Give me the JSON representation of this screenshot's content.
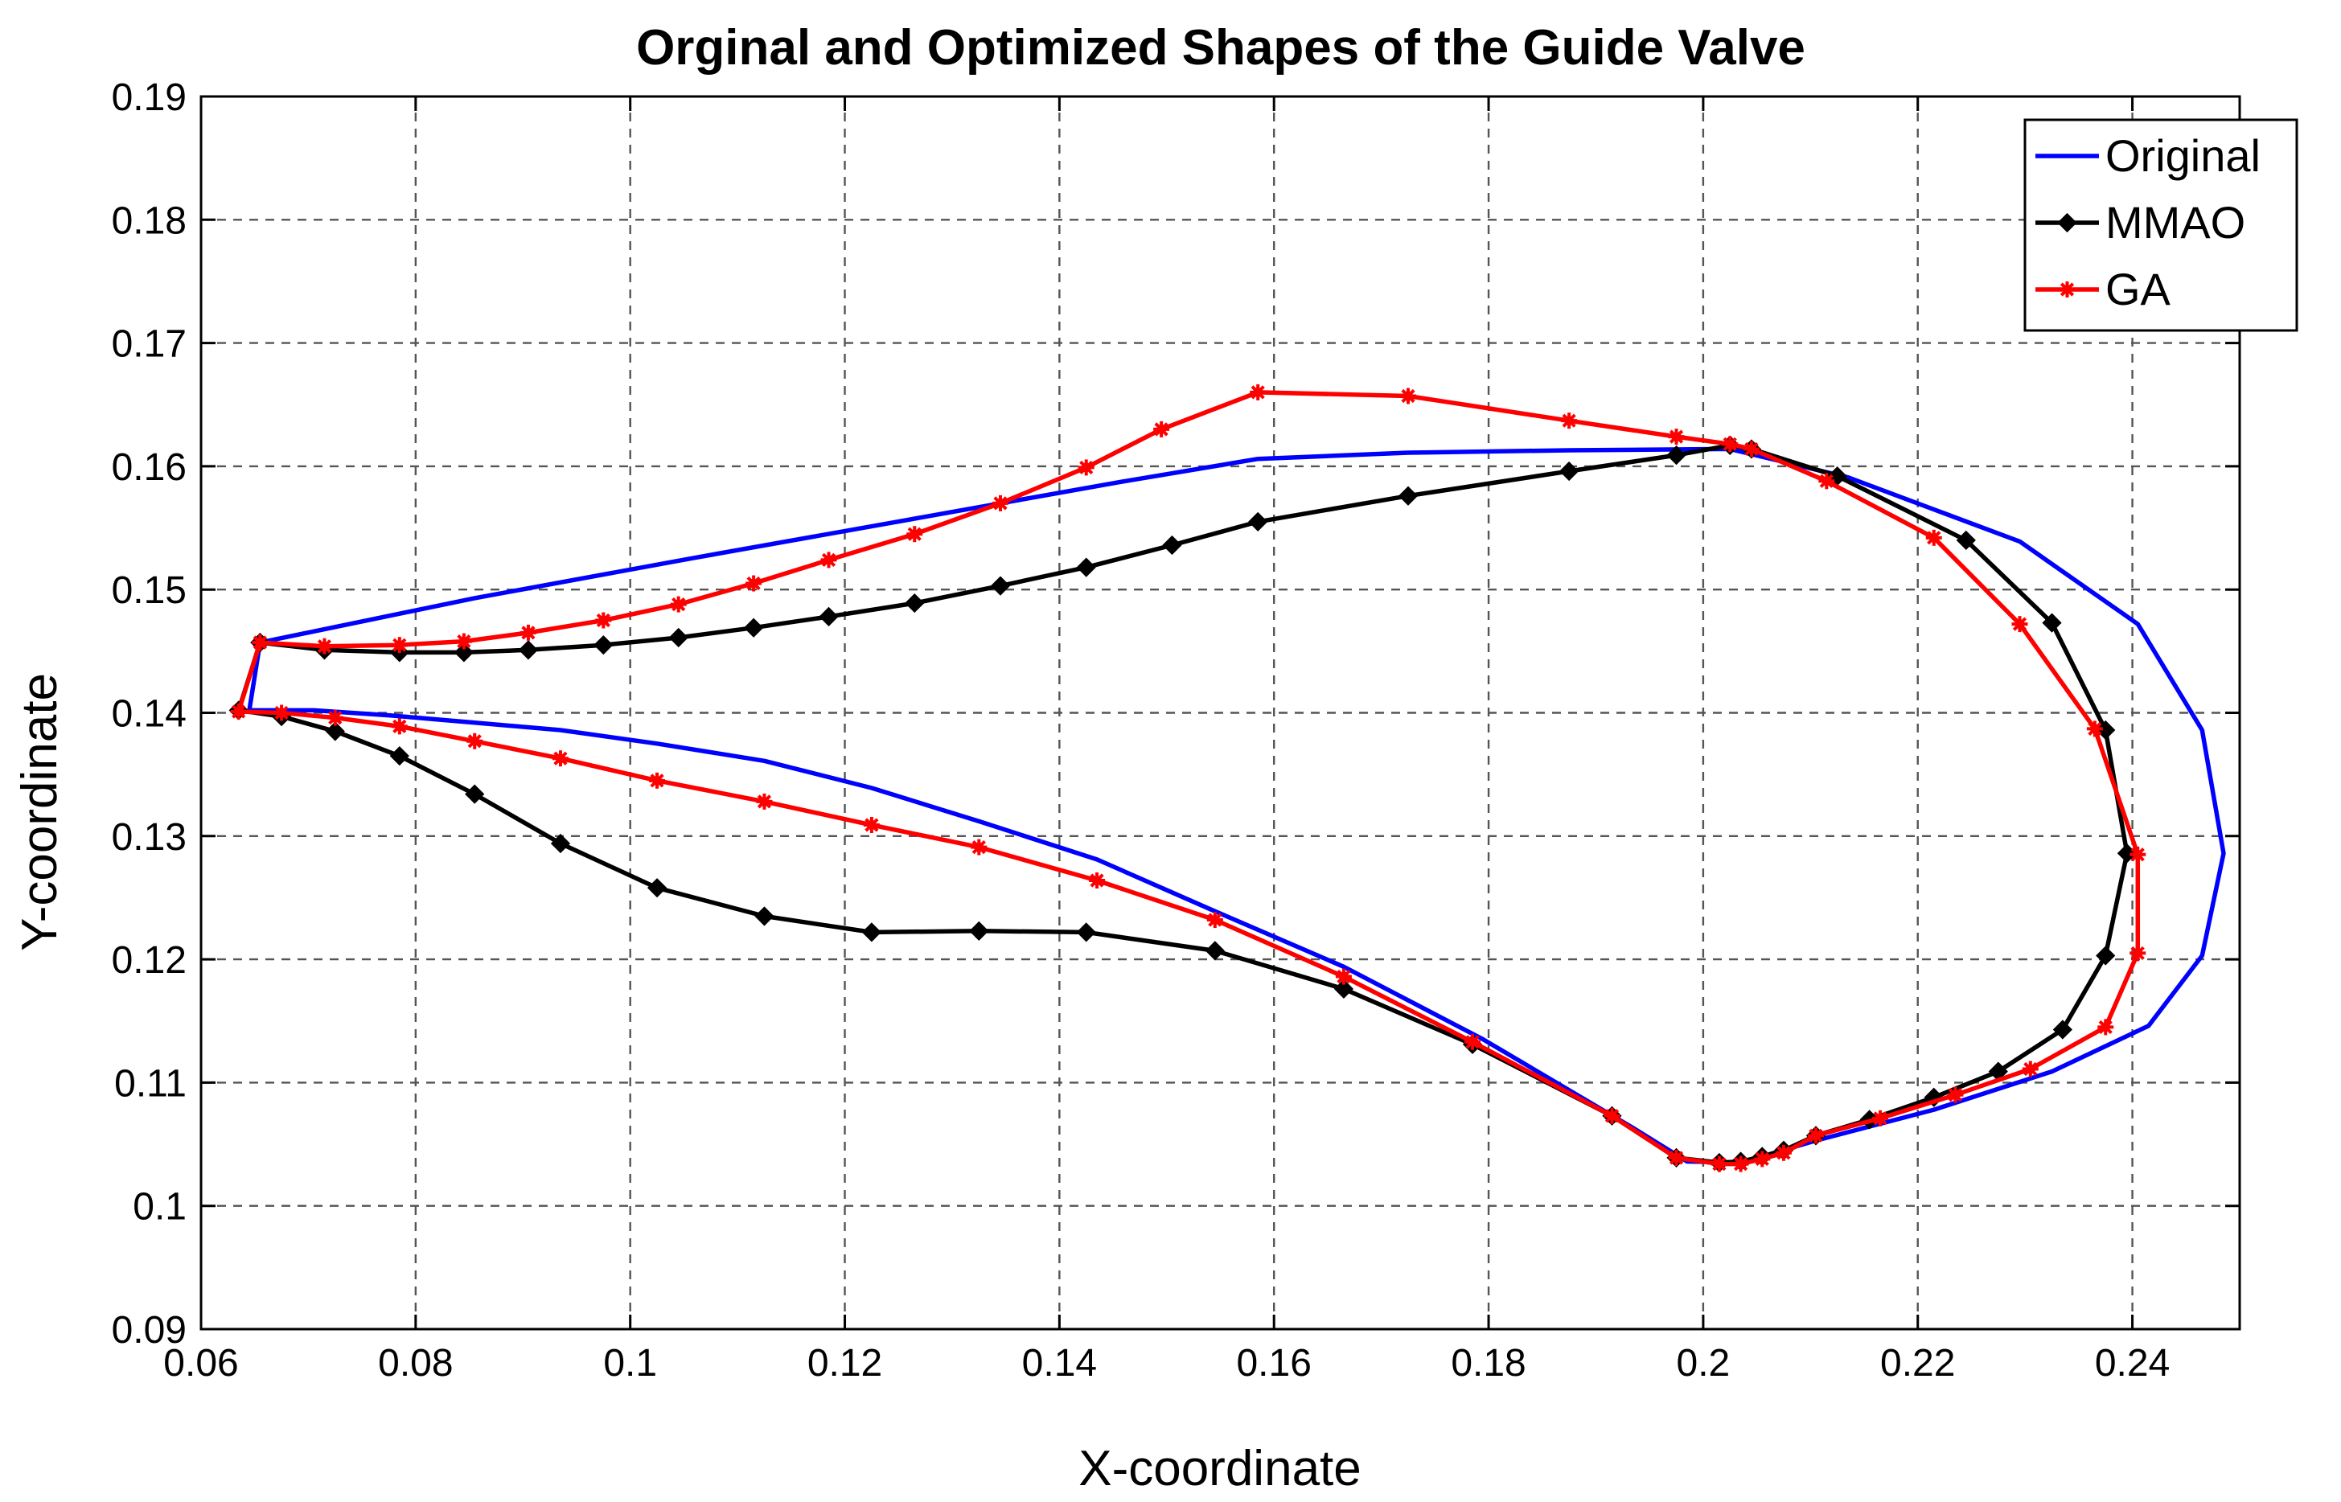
{
  "chart_data": {
    "type": "line",
    "title": "Orginal and Optimized Shapes of the Guide Valve",
    "xlabel": "X-coordinate",
    "ylabel": "Y-coordinate",
    "xlim": [
      0.06,
      0.25
    ],
    "ylim": [
      0.09,
      0.19
    ],
    "xticks": [
      0.06,
      0.08,
      0.1,
      0.12,
      0.14,
      0.16,
      0.18,
      0.2,
      0.22,
      0.24
    ],
    "xtick_labels": [
      "0.06",
      "0.08",
      "0.1",
      "0.12",
      "0.14",
      "0.16",
      "0.18",
      "0.2",
      "0.22",
      "0.24"
    ],
    "yticks": [
      0.09,
      0.1,
      0.11,
      0.12,
      0.13,
      0.14,
      0.15,
      0.16,
      0.17,
      0.18,
      0.19
    ],
    "ytick_labels": [
      "0.09",
      "0.1",
      "0.11",
      "0.12",
      "0.13",
      "0.14",
      "0.15",
      "0.16",
      "0.17",
      "0.18",
      "0.19"
    ],
    "grid": true,
    "legend_position": "top-right",
    "series": [
      {
        "name": "Original",
        "color": "#0000ff",
        "marker": "none",
        "x": [
          0.0655,
          0.0855,
          0.1055,
          0.1255,
          0.1455,
          0.1585,
          0.1725,
          0.1875,
          0.2025,
          0.2135,
          0.2295,
          0.2405,
          0.2465,
          0.2485,
          0.2465,
          0.2415,
          0.2325,
          0.2215,
          0.2105,
          0.2035,
          0.1985,
          0.1935,
          0.1795,
          0.1665,
          0.1545,
          0.1435,
          0.1325,
          0.1225,
          0.1125,
          0.1025,
          0.0935,
          0.0855,
          0.0775,
          0.0705,
          0.0665,
          0.0645,
          0.0655
        ],
        "y": [
          0.1457,
          0.1493,
          0.1525,
          0.1556,
          0.1587,
          0.1606,
          0.1611,
          0.1613,
          0.1614,
          0.1591,
          0.1539,
          0.1472,
          0.1386,
          0.1286,
          0.1203,
          0.1146,
          0.1109,
          0.1078,
          0.1053,
          0.1035,
          0.1036,
          0.1063,
          0.1135,
          0.1194,
          0.1239,
          0.1281,
          0.1312,
          0.1339,
          0.1361,
          0.1375,
          0.1386,
          0.1392,
          0.1398,
          0.1402,
          0.1402,
          0.1402,
          0.1457
        ]
      },
      {
        "name": "MMAO",
        "color": "#000000",
        "marker": "diamond",
        "x": [
          0.0655,
          0.0715,
          0.0785,
          0.0845,
          0.0905,
          0.0975,
          0.1045,
          0.1115,
          0.1185,
          0.1265,
          0.1345,
          0.1425,
          0.1505,
          0.1585,
          0.1725,
          0.1875,
          0.1975,
          0.2025,
          0.2045,
          0.2125,
          0.2245,
          0.2325,
          0.2375,
          0.2395,
          0.2375,
          0.2335,
          0.2275,
          0.2215,
          0.2155,
          0.2105,
          0.2075,
          0.2055,
          0.2035,
          0.2015,
          0.1975,
          0.1915,
          0.1785,
          0.1665,
          0.1545,
          0.1425,
          0.1325,
          0.1225,
          0.1125,
          0.1025,
          0.0935,
          0.0855,
          0.0785,
          0.0725,
          0.0675,
          0.0635,
          0.0655
        ],
        "y": [
          0.1457,
          0.1451,
          0.1449,
          0.1449,
          0.1451,
          0.1455,
          0.1461,
          0.1469,
          0.1478,
          0.1489,
          0.1503,
          0.1518,
          0.1536,
          0.1555,
          0.1576,
          0.1596,
          0.1609,
          0.1617,
          0.1614,
          0.1592,
          0.154,
          0.1473,
          0.1386,
          0.1286,
          0.1203,
          0.1143,
          0.1109,
          0.1088,
          0.107,
          0.1057,
          0.1045,
          0.104,
          0.1036,
          0.1035,
          0.1039,
          0.1073,
          0.1131,
          0.1176,
          0.1207,
          0.1222,
          0.1223,
          0.1222,
          0.1235,
          0.1258,
          0.1294,
          0.1334,
          0.1365,
          0.1385,
          0.1397,
          0.1402,
          0.1457
        ]
      },
      {
        "name": "GA",
        "color": "#ff0000",
        "marker": "asterisk",
        "x": [
          0.0655,
          0.0715,
          0.0785,
          0.0845,
          0.0905,
          0.0975,
          0.1045,
          0.1115,
          0.1185,
          0.1265,
          0.1345,
          0.1425,
          0.1495,
          0.1585,
          0.1725,
          0.1875,
          0.1975,
          0.2025,
          0.2045,
          0.2115,
          0.2215,
          0.2295,
          0.2365,
          0.2405,
          0.2405,
          0.2375,
          0.2305,
          0.2235,
          0.2165,
          0.2105,
          0.2075,
          0.2055,
          0.2035,
          0.2015,
          0.1975,
          0.1915,
          0.1785,
          0.1665,
          0.1545,
          0.1435,
          0.1325,
          0.1225,
          0.1125,
          0.1025,
          0.0935,
          0.0855,
          0.0785,
          0.0725,
          0.0675,
          0.0635,
          0.0655
        ],
        "y": [
          0.1457,
          0.1454,
          0.1455,
          0.1458,
          0.1465,
          0.1475,
          0.1488,
          0.1505,
          0.1524,
          0.1545,
          0.157,
          0.1599,
          0.163,
          0.166,
          0.1657,
          0.1637,
          0.1624,
          0.1618,
          0.1614,
          0.1588,
          0.1542,
          0.1472,
          0.1387,
          0.1285,
          0.1205,
          0.1145,
          0.1111,
          0.109,
          0.1071,
          0.1057,
          0.1043,
          0.1038,
          0.1034,
          0.1034,
          0.1039,
          0.1073,
          0.1133,
          0.1186,
          0.1232,
          0.1264,
          0.1291,
          0.1309,
          0.1328,
          0.1345,
          0.1363,
          0.1377,
          0.1389,
          0.1396,
          0.14,
          0.1401,
          0.1457
        ]
      }
    ]
  }
}
